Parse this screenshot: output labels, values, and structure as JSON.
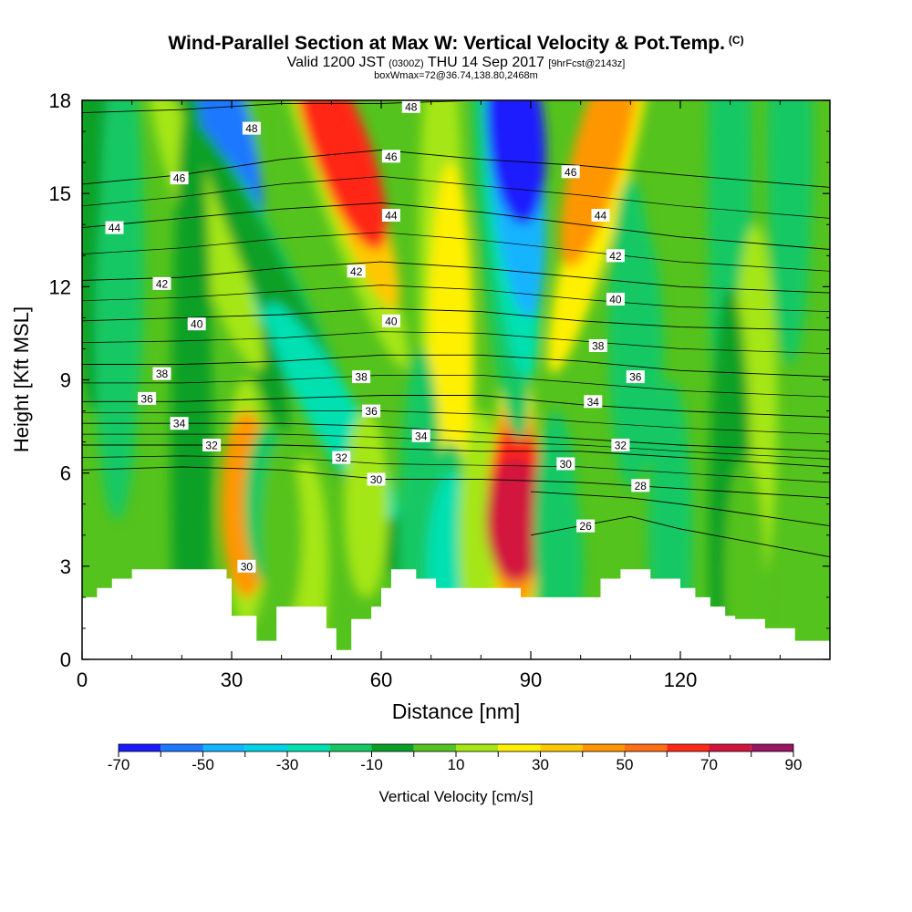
{
  "header": {
    "title": "Wind-Parallel Section at Max W: Vertical Velocity & Pot.Temp.",
    "copyright": "(C)",
    "valid_prefix": "Valid 1200 JST",
    "valid_utc": "(0300Z)",
    "valid_date": "THU 14 Sep 2017",
    "forecast": "[9hrFcst@2143z]",
    "box_info": "boxWmax=72@36.74,138.80,2468m"
  },
  "chart_data": {
    "type": "heatmap",
    "title": "Wind-Parallel Section at Max W: Vertical Velocity & Pot.Temp.",
    "xlabel": "Distance [nm]",
    "ylabel": "Height [Kft MSL]",
    "xlim": [
      0,
      150
    ],
    "ylim": [
      0,
      18
    ],
    "x_ticks": [
      0,
      30,
      60,
      90,
      120
    ],
    "y_ticks": [
      0,
      3,
      6,
      9,
      12,
      15,
      18
    ],
    "colorbar": {
      "label": "Vertical Velocity [cm/s]",
      "tick_labels": [
        -70,
        -50,
        -30,
        -10,
        10,
        30,
        50,
        70,
        90
      ],
      "bounds": [
        -70,
        -60,
        -50,
        -40,
        -30,
        -20,
        -10,
        0,
        10,
        20,
        30,
        40,
        50,
        60,
        70,
        80,
        90
      ],
      "colors": [
        "#1a1aff",
        "#1e78ff",
        "#14b4ff",
        "#00d2e6",
        "#00e0b0",
        "#14c864",
        "#0aa028",
        "#55c31e",
        "#a5e614",
        "#fff000",
        "#ffc800",
        "#ff9600",
        "#ff6e14",
        "#ff2814",
        "#d2143c",
        "#9b1464"
      ]
    },
    "vertical_velocity_features": [
      {
        "x": 28,
        "y_range": [
          10.0,
          18
        ],
        "value": -55,
        "note": "blue downdraft column"
      },
      {
        "x": 48,
        "y_range": [
          6.5,
          13
        ],
        "value": -20,
        "note": "green sinking band"
      },
      {
        "x": 52,
        "y_range": [
          11.5,
          18
        ],
        "value": 60,
        "note": "red updraft column"
      },
      {
        "x": 33,
        "y_range": [
          2.5,
          7.5
        ],
        "value": 40,
        "note": "orange updraft"
      },
      {
        "x": 87,
        "y_range": [
          9.5,
          18
        ],
        "value": -65,
        "note": "blue downdraft column"
      },
      {
        "x": 87,
        "y_range": [
          2.8,
          7.0
        ],
        "value": 72,
        "note": "max updraft core"
      },
      {
        "x": 104,
        "y_range": [
          13.0,
          18
        ],
        "value": 40,
        "note": "orange updraft column"
      },
      {
        "x": 74,
        "y_range": [
          2.5,
          3.5
        ],
        "value": -30,
        "note": "cyan pocket"
      }
    ],
    "theta_contours_label_values": [
      48,
      46,
      44,
      42,
      40,
      38,
      36,
      34,
      32,
      30,
      28,
      26
    ],
    "theta_contours": [
      {
        "value": 48,
        "points": [
          [
            0,
            17.6
          ],
          [
            20,
            17.7
          ],
          [
            40,
            17.9
          ],
          [
            60,
            17.9
          ],
          [
            80,
            18.0
          ]
        ]
      },
      {
        "value": 46,
        "points": [
          [
            0,
            15.3
          ],
          [
            20,
            15.6
          ],
          [
            40,
            16.1
          ],
          [
            60,
            16.4
          ],
          [
            80,
            16.1
          ],
          [
            100,
            15.9
          ],
          [
            120,
            15.6
          ],
          [
            150,
            15.2
          ]
        ]
      },
      {
        "value": 44,
        "points": [
          [
            0,
            13.9
          ],
          [
            20,
            14.2
          ],
          [
            40,
            14.5
          ],
          [
            60,
            14.7
          ],
          [
            80,
            14.4
          ],
          [
            100,
            14.0
          ],
          [
            120,
            13.6
          ],
          [
            150,
            13.2
          ]
        ]
      },
      {
        "value": 42,
        "points": [
          [
            0,
            12.2
          ],
          [
            20,
            12.3
          ],
          [
            40,
            12.6
          ],
          [
            60,
            12.8
          ],
          [
            80,
            12.6
          ],
          [
            100,
            12.3
          ],
          [
            120,
            12.0
          ],
          [
            150,
            11.8
          ]
        ]
      },
      {
        "value": 40,
        "points": [
          [
            0,
            10.9
          ],
          [
            20,
            11.0
          ],
          [
            40,
            11.1
          ],
          [
            60,
            11.3
          ],
          [
            80,
            11.2
          ],
          [
            100,
            10.9
          ],
          [
            120,
            10.7
          ],
          [
            150,
            10.6
          ]
        ]
      },
      {
        "value": 38,
        "points": [
          [
            0,
            9.5
          ],
          [
            20,
            9.5
          ],
          [
            40,
            9.6
          ],
          [
            60,
            9.8
          ],
          [
            80,
            9.8
          ],
          [
            100,
            9.6
          ],
          [
            120,
            9.3
          ],
          [
            150,
            9.1
          ]
        ]
      },
      {
        "value": 36,
        "points": [
          [
            0,
            8.3
          ],
          [
            20,
            8.3
          ],
          [
            40,
            8.4
          ],
          [
            60,
            8.5
          ],
          [
            80,
            8.5
          ],
          [
            100,
            8.2
          ],
          [
            120,
            8.0
          ],
          [
            150,
            7.8
          ]
        ]
      },
      {
        "value": 34,
        "points": [
          [
            0,
            7.6
          ],
          [
            20,
            7.6
          ],
          [
            40,
            7.6
          ],
          [
            60,
            7.5
          ],
          [
            80,
            7.3
          ],
          [
            100,
            7.1
          ],
          [
            120,
            6.9
          ],
          [
            150,
            6.7
          ]
        ]
      },
      {
        "value": 32,
        "points": [
          [
            0,
            6.9
          ],
          [
            20,
            6.9
          ],
          [
            40,
            6.9
          ],
          [
            60,
            6.8
          ],
          [
            80,
            6.7
          ],
          [
            100,
            6.7
          ],
          [
            120,
            6.5
          ],
          [
            150,
            6.2
          ]
        ]
      },
      {
        "value": 30,
        "points": [
          [
            0,
            6.1
          ],
          [
            20,
            6.2
          ],
          [
            40,
            6.1
          ],
          [
            60,
            5.8
          ],
          [
            80,
            5.8
          ],
          [
            100,
            5.7
          ],
          [
            120,
            5.5
          ],
          [
            150,
            5.2
          ]
        ]
      },
      {
        "value": 28,
        "points": [
          [
            90,
            5.4
          ],
          [
            110,
            5.2
          ],
          [
            120,
            5.0
          ],
          [
            150,
            4.3
          ]
        ]
      },
      {
        "value": 26,
        "points": [
          [
            90,
            4.0
          ],
          [
            100,
            4.3
          ],
          [
            110,
            4.6
          ],
          [
            120,
            4.2
          ],
          [
            150,
            3.3
          ]
        ]
      }
    ],
    "contour_labels": [
      {
        "text": "48",
        "x": 34,
        "y": 17.1
      },
      {
        "text": "48",
        "x": 66,
        "y": 17.8
      },
      {
        "text": "46",
        "x": 19.5,
        "y": 15.5
      },
      {
        "text": "46",
        "x": 62,
        "y": 16.2
      },
      {
        "text": "46",
        "x": 98,
        "y": 15.7
      },
      {
        "text": "44",
        "x": 6.5,
        "y": 13.9
      },
      {
        "text": "44",
        "x": 62,
        "y": 14.3
      },
      {
        "text": "44",
        "x": 104,
        "y": 14.3
      },
      {
        "text": "42",
        "x": 16,
        "y": 12.1
      },
      {
        "text": "42",
        "x": 55,
        "y": 12.5
      },
      {
        "text": "42",
        "x": 107,
        "y": 13.0
      },
      {
        "text": "40",
        "x": 23,
        "y": 10.8
      },
      {
        "text": "40",
        "x": 62,
        "y": 10.9
      },
      {
        "text": "40",
        "x": 107,
        "y": 11.6
      },
      {
        "text": "38",
        "x": 16,
        "y": 9.2
      },
      {
        "text": "38",
        "x": 56,
        "y": 9.1
      },
      {
        "text": "38",
        "x": 103.5,
        "y": 10.1
      },
      {
        "text": "36",
        "x": 13,
        "y": 8.4
      },
      {
        "text": "36",
        "x": 58,
        "y": 8.0
      },
      {
        "text": "36",
        "x": 111,
        "y": 9.1
      },
      {
        "text": "34",
        "x": 19.5,
        "y": 7.6
      },
      {
        "text": "34",
        "x": 68,
        "y": 7.2
      },
      {
        "text": "34",
        "x": 102.5,
        "y": 8.3
      },
      {
        "text": "32",
        "x": 26,
        "y": 6.9
      },
      {
        "text": "32",
        "x": 52,
        "y": 6.5
      },
      {
        "text": "32",
        "x": 108,
        "y": 6.9
      },
      {
        "text": "30",
        "x": 59,
        "y": 5.8
      },
      {
        "text": "30",
        "x": 97,
        "y": 6.3
      },
      {
        "text": "30",
        "x": 33,
        "y": 3.0
      },
      {
        "text": "28",
        "x": 112,
        "y": 5.6
      },
      {
        "text": "26",
        "x": 101,
        "y": 4.3
      }
    ],
    "terrain_profile": [
      [
        0,
        2.0
      ],
      [
        3,
        2.0
      ],
      [
        3,
        2.3
      ],
      [
        6,
        2.3
      ],
      [
        6,
        2.6
      ],
      [
        10,
        2.6
      ],
      [
        10,
        2.9
      ],
      [
        29,
        2.9
      ],
      [
        29,
        2.6
      ],
      [
        30,
        2.6
      ],
      [
        30,
        1.4
      ],
      [
        35,
        1.4
      ],
      [
        35,
        0.6
      ],
      [
        39,
        0.6
      ],
      [
        39,
        1.7
      ],
      [
        49,
        1.7
      ],
      [
        49,
        1.0
      ],
      [
        51,
        1.0
      ],
      [
        51,
        0.3
      ],
      [
        54,
        0.3
      ],
      [
        54,
        1.3
      ],
      [
        58,
        1.3
      ],
      [
        58,
        1.7
      ],
      [
        60,
        1.7
      ],
      [
        60,
        2.3
      ],
      [
        62,
        2.3
      ],
      [
        62,
        2.9
      ],
      [
        67,
        2.9
      ],
      [
        67,
        2.6
      ],
      [
        71,
        2.6
      ],
      [
        71,
        2.3
      ],
      [
        88,
        2.3
      ],
      [
        88,
        2.0
      ],
      [
        104,
        2.0
      ],
      [
        104,
        2.6
      ],
      [
        108,
        2.6
      ],
      [
        108,
        2.9
      ],
      [
        114,
        2.9
      ],
      [
        114,
        2.6
      ],
      [
        120,
        2.6
      ],
      [
        120,
        2.3
      ],
      [
        123,
        2.3
      ],
      [
        123,
        2.0
      ],
      [
        126,
        2.0
      ],
      [
        126,
        1.7
      ],
      [
        129,
        1.7
      ],
      [
        129,
        1.4
      ],
      [
        131,
        1.4
      ],
      [
        131,
        1.3
      ],
      [
        137,
        1.3
      ],
      [
        137,
        1.0
      ],
      [
        143,
        1.0
      ],
      [
        143,
        0.6
      ],
      [
        150,
        0.6
      ]
    ]
  }
}
